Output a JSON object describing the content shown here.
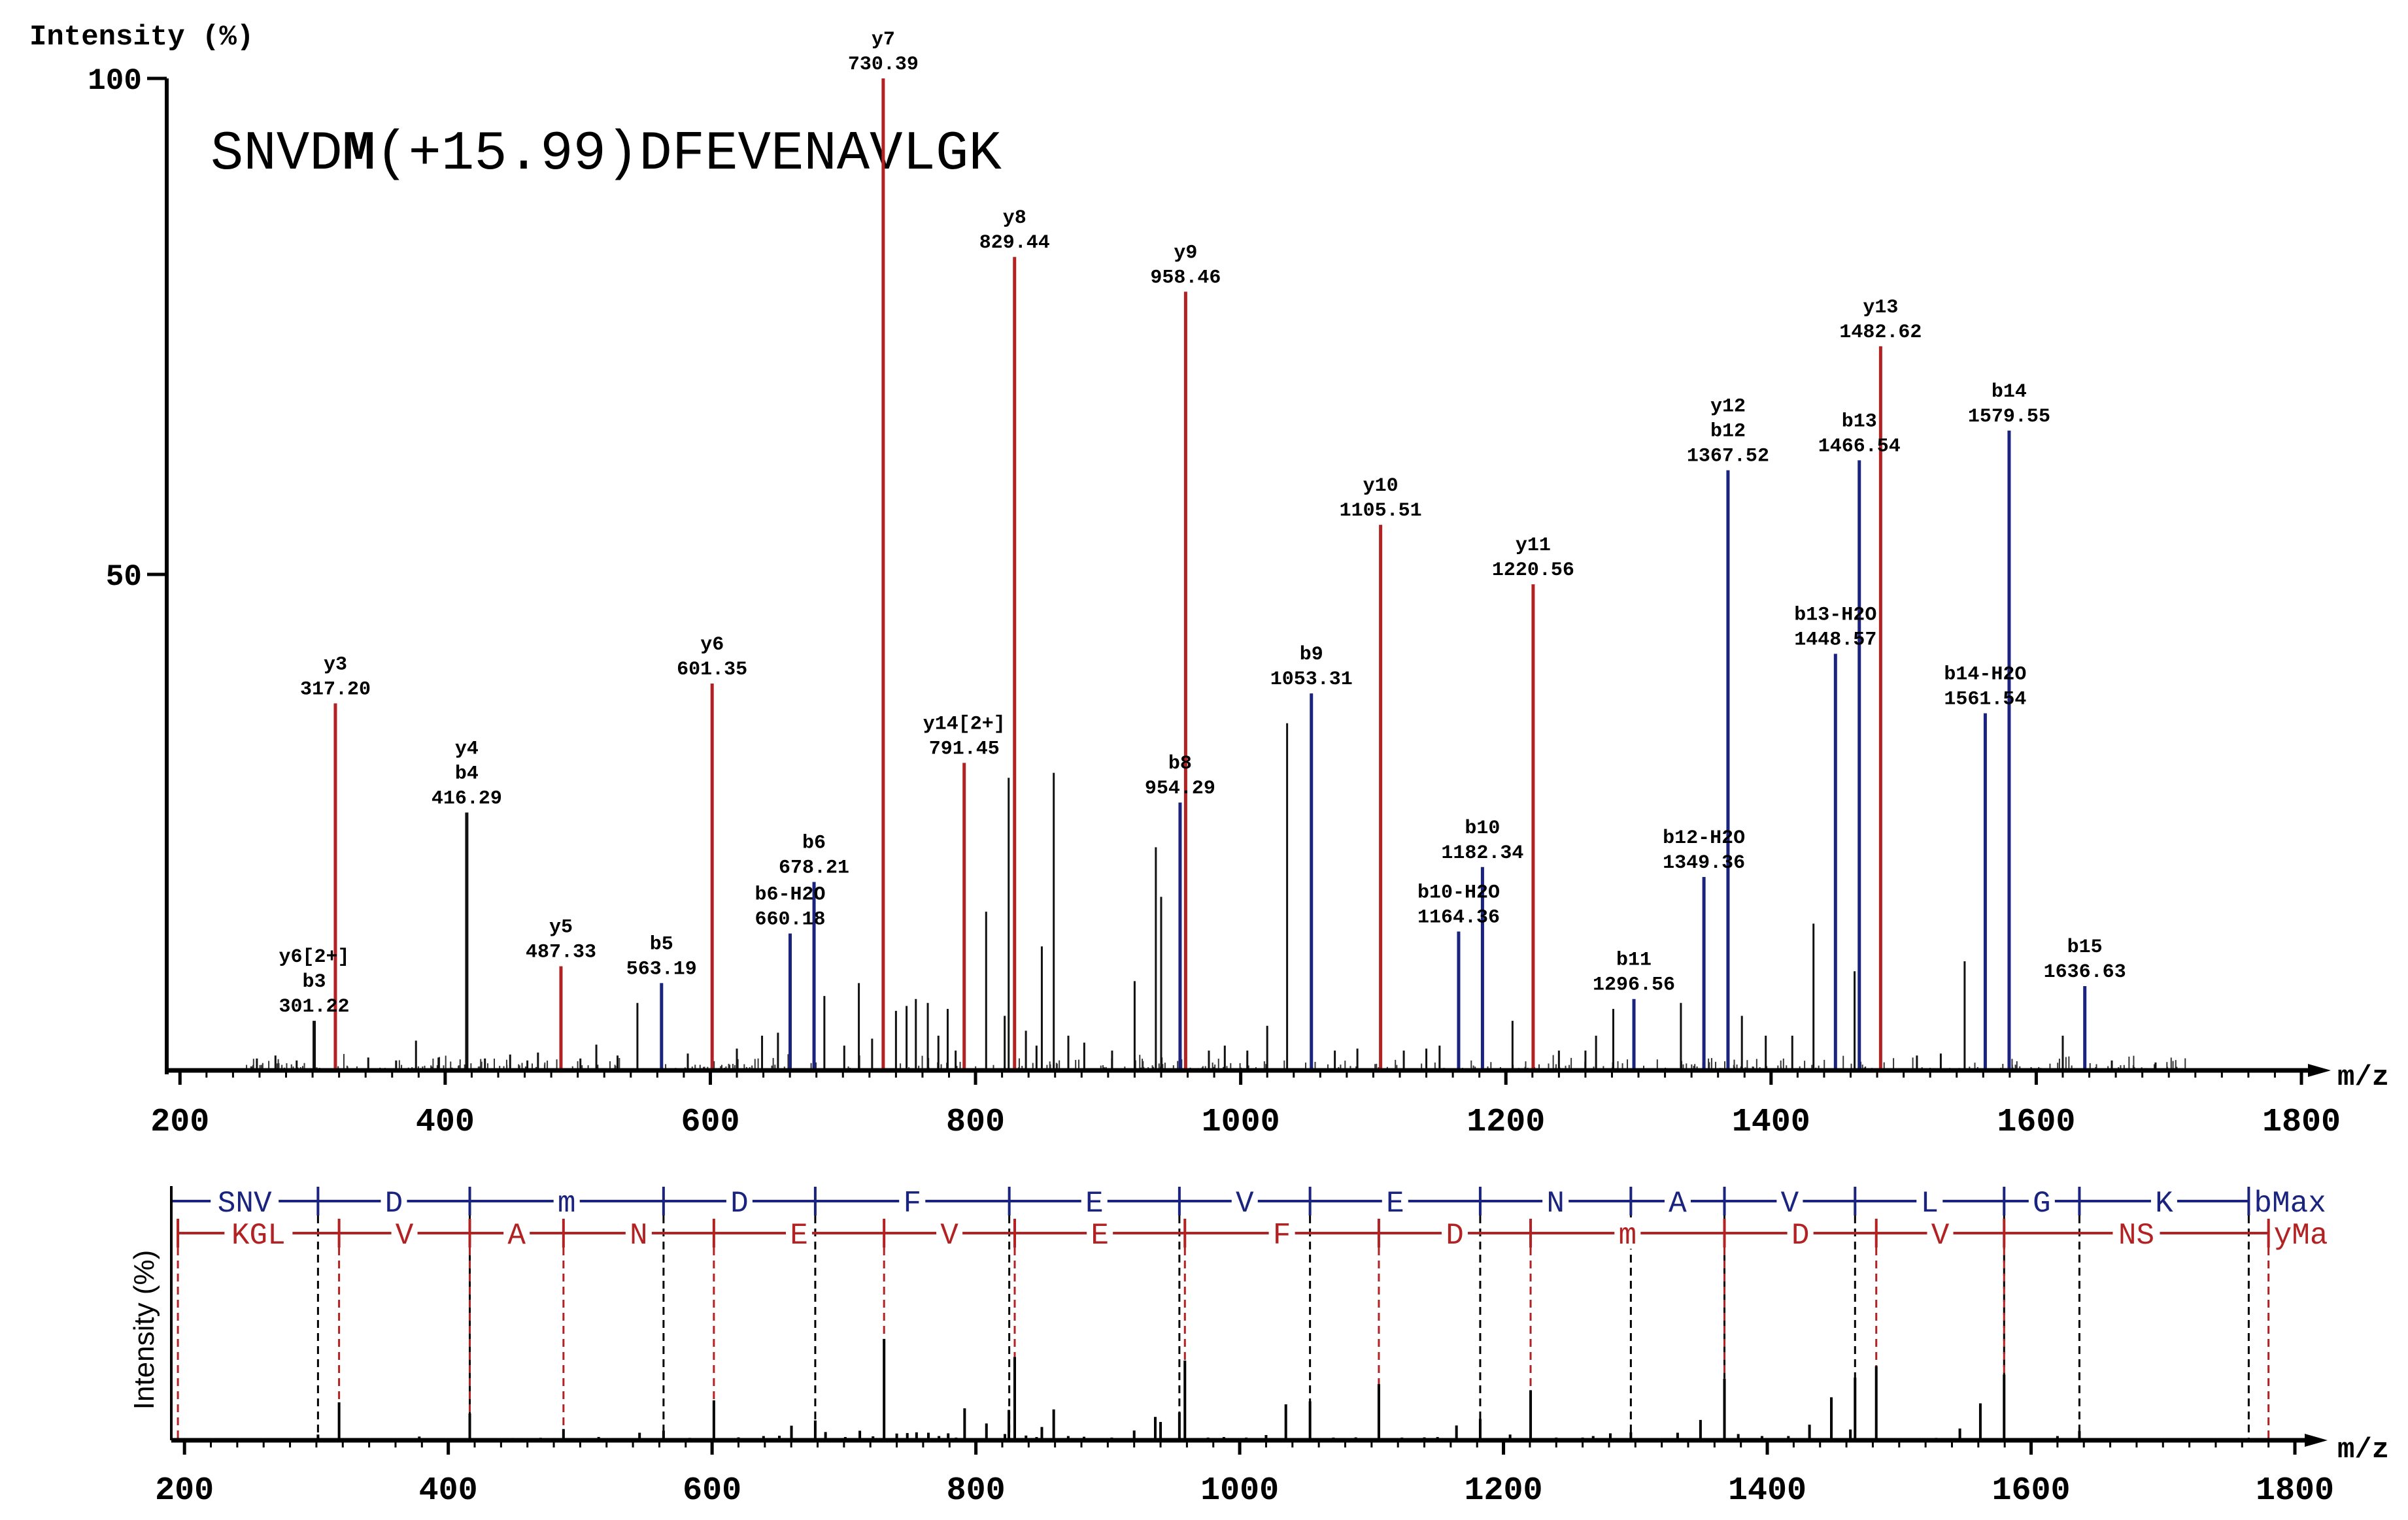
{
  "chart_data": {
    "type": "bar",
    "title": "",
    "peptide": {
      "prefix": "SNVD",
      "modified_residue": "M",
      "modification": "(+15.99)",
      "suffix": "DFEVENAVLGK"
    },
    "ylabel": "Intensity (%)",
    "xlabel": "m/z",
    "xlim": [
      190,
      1800
    ],
    "ylim": [
      0,
      100
    ],
    "x_ticks": [
      200,
      400,
      600,
      800,
      1000,
      1200,
      1400,
      1600,
      1800
    ],
    "y_ticks": [
      50,
      100
    ],
    "colors": {
      "y_ion": "#b22222",
      "b_ion": "#1a237e",
      "other": "#111111",
      "axis": "#000000"
    },
    "annotated_peaks": [
      {
        "mz": 301.22,
        "intensity": 5,
        "type": "other",
        "labels": [
          "y6[2+]",
          "b3",
          "301.22"
        ]
      },
      {
        "mz": 317.2,
        "intensity": 37,
        "type": "y",
        "labels": [
          "y3",
          "317.20"
        ]
      },
      {
        "mz": 416.29,
        "intensity": 26,
        "type": "other",
        "labels": [
          "y4",
          "b4",
          "416.29"
        ]
      },
      {
        "mz": 487.33,
        "intensity": 10.5,
        "type": "y",
        "labels": [
          "y5",
          "487.33"
        ]
      },
      {
        "mz": 563.19,
        "intensity": 8.8,
        "type": "b",
        "labels": [
          "b5",
          "563.19"
        ]
      },
      {
        "mz": 601.35,
        "intensity": 39,
        "type": "y",
        "labels": [
          "y6",
          "601.35"
        ]
      },
      {
        "mz": 660.18,
        "intensity": 13.8,
        "type": "b",
        "labels": [
          "b6-H2O",
          "660.18"
        ]
      },
      {
        "mz": 678.21,
        "intensity": 19,
        "type": "b",
        "labels": [
          "b6",
          "678.21"
        ]
      },
      {
        "mz": 730.39,
        "intensity": 100,
        "type": "y",
        "labels": [
          "y7",
          "730.39"
        ]
      },
      {
        "mz": 791.45,
        "intensity": 31,
        "type": "y",
        "labels": [
          "y14[2+]",
          "791.45"
        ]
      },
      {
        "mz": 829.44,
        "intensity": 82,
        "type": "y",
        "labels": [
          "y8",
          "829.44"
        ]
      },
      {
        "mz": 954.29,
        "intensity": 27,
        "type": "b",
        "labels": [
          "b8",
          "954.29"
        ]
      },
      {
        "mz": 958.46,
        "intensity": 78.5,
        "type": "y",
        "labels": [
          "y9",
          "958.46"
        ]
      },
      {
        "mz": 1053.31,
        "intensity": 38,
        "type": "b",
        "labels": [
          "b9",
          "1053.31"
        ]
      },
      {
        "mz": 1105.51,
        "intensity": 55,
        "type": "y",
        "labels": [
          "y10",
          "1105.51"
        ]
      },
      {
        "mz": 1164.36,
        "intensity": 14,
        "type": "b",
        "labels": [
          "b10-H2O",
          "1164.36"
        ]
      },
      {
        "mz": 1182.34,
        "intensity": 20.5,
        "type": "b",
        "labels": [
          "b10",
          "1182.34"
        ]
      },
      {
        "mz": 1220.56,
        "intensity": 49,
        "type": "y",
        "labels": [
          "y11",
          "1220.56"
        ]
      },
      {
        "mz": 1296.56,
        "intensity": 7.2,
        "type": "b",
        "labels": [
          "b11",
          "1296.56"
        ]
      },
      {
        "mz": 1349.36,
        "intensity": 19.5,
        "type": "b",
        "labels": [
          "b12-H2O",
          "1349.36"
        ]
      },
      {
        "mz": 1367.52,
        "intensity": 60.5,
        "type": "b",
        "labels": [
          "y12",
          "b12",
          "1367.52"
        ]
      },
      {
        "mz": 1448.57,
        "intensity": 42,
        "type": "b",
        "labels": [
          "b13-H2O",
          "1448.57"
        ]
      },
      {
        "mz": 1466.54,
        "intensity": 61.5,
        "type": "b",
        "labels": [
          "b13",
          "1466.54"
        ]
      },
      {
        "mz": 1482.62,
        "intensity": 73,
        "type": "y",
        "labels": [
          "y13",
          "1482.62"
        ]
      },
      {
        "mz": 1561.54,
        "intensity": 36,
        "type": "b",
        "labels": [
          "b14-H2O",
          "1561.54"
        ]
      },
      {
        "mz": 1579.55,
        "intensity": 64.5,
        "type": "b",
        "labels": [
          "b14",
          "1579.55"
        ]
      },
      {
        "mz": 1636.63,
        "intensity": 8.5,
        "type": "b",
        "labels": [
          "b15",
          "1636.63"
        ]
      }
    ],
    "unannotated_peaks": [
      {
        "mz": 258,
        "intensity": 1.2
      },
      {
        "mz": 272,
        "intensity": 1.5
      },
      {
        "mz": 288,
        "intensity": 1.0
      },
      {
        "mz": 342,
        "intensity": 1.3
      },
      {
        "mz": 363,
        "intensity": 1.0
      },
      {
        "mz": 378,
        "intensity": 3.0
      },
      {
        "mz": 395,
        "intensity": 1.3
      },
      {
        "mz": 430,
        "intensity": 1.2
      },
      {
        "mz": 449,
        "intensity": 1.6
      },
      {
        "mz": 462,
        "intensity": 1.0
      },
      {
        "mz": 470,
        "intensity": 1.8
      },
      {
        "mz": 502,
        "intensity": 1.2
      },
      {
        "mz": 514,
        "intensity": 2.6
      },
      {
        "mz": 530,
        "intensity": 1.5
      },
      {
        "mz": 545,
        "intensity": 6.8
      },
      {
        "mz": 583,
        "intensity": 1.7
      },
      {
        "mz": 620,
        "intensity": 2.2
      },
      {
        "mz": 639,
        "intensity": 3.5
      },
      {
        "mz": 651,
        "intensity": 3.8
      },
      {
        "mz": 686,
        "intensity": 7.5
      },
      {
        "mz": 701,
        "intensity": 2.5
      },
      {
        "mz": 712,
        "intensity": 8.8
      },
      {
        "mz": 722,
        "intensity": 3.2
      },
      {
        "mz": 740,
        "intensity": 6.0
      },
      {
        "mz": 748,
        "intensity": 6.5
      },
      {
        "mz": 755,
        "intensity": 7.2
      },
      {
        "mz": 764,
        "intensity": 6.8
      },
      {
        "mz": 772,
        "intensity": 3.5
      },
      {
        "mz": 779,
        "intensity": 6.2
      },
      {
        "mz": 785,
        "intensity": 2.0
      },
      {
        "mz": 808,
        "intensity": 16.0
      },
      {
        "mz": 822,
        "intensity": 5.5
      },
      {
        "mz": 825,
        "intensity": 29.5
      },
      {
        "mz": 838,
        "intensity": 4.0
      },
      {
        "mz": 846,
        "intensity": 2.5
      },
      {
        "mz": 850,
        "intensity": 12.5
      },
      {
        "mz": 859,
        "intensity": 30.0
      },
      {
        "mz": 870,
        "intensity": 3.5
      },
      {
        "mz": 882,
        "intensity": 2.8
      },
      {
        "mz": 903,
        "intensity": 2.0
      },
      {
        "mz": 920,
        "intensity": 9.0
      },
      {
        "mz": 936,
        "intensity": 22.5
      },
      {
        "mz": 940,
        "intensity": 17.5
      },
      {
        "mz": 976,
        "intensity": 2.0
      },
      {
        "mz": 988,
        "intensity": 2.5
      },
      {
        "mz": 1005,
        "intensity": 2.0
      },
      {
        "mz": 1020,
        "intensity": 4.5
      },
      {
        "mz": 1035,
        "intensity": 35.0
      },
      {
        "mz": 1071,
        "intensity": 2.0
      },
      {
        "mz": 1088,
        "intensity": 2.2
      },
      {
        "mz": 1123,
        "intensity": 2.0
      },
      {
        "mz": 1140,
        "intensity": 2.2
      },
      {
        "mz": 1150,
        "intensity": 2.5
      },
      {
        "mz": 1205,
        "intensity": 5.0
      },
      {
        "mz": 1240,
        "intensity": 2.0
      },
      {
        "mz": 1260,
        "intensity": 2.0
      },
      {
        "mz": 1268,
        "intensity": 3.5
      },
      {
        "mz": 1281,
        "intensity": 6.2
      },
      {
        "mz": 1332,
        "intensity": 6.8
      },
      {
        "mz": 1378,
        "intensity": 5.5
      },
      {
        "mz": 1396,
        "intensity": 3.5
      },
      {
        "mz": 1416,
        "intensity": 3.5
      },
      {
        "mz": 1432,
        "intensity": 14.8
      },
      {
        "mz": 1463,
        "intensity": 10.0
      },
      {
        "mz": 1510,
        "intensity": 1.5
      },
      {
        "mz": 1528,
        "intensity": 1.7
      },
      {
        "mz": 1546,
        "intensity": 11.0
      },
      {
        "mz": 1620,
        "intensity": 3.5
      },
      {
        "mz": 1657,
        "intensity": 1.0
      },
      {
        "mz": 1690,
        "intensity": 0.8
      }
    ],
    "coverage": {
      "b_row": {
        "label": "bMax",
        "tokens": [
          "SNV",
          "D",
          "m",
          "D",
          "F",
          "E",
          "V",
          "E",
          "N",
          "A",
          "V",
          "L",
          "G",
          "K"
        ],
        "boundaries_mz": [
          190,
          301.22,
          416.29,
          563.19,
          678.21,
          825.3,
          954.29,
          1053.31,
          1182.34,
          1296.56,
          1367.52,
          1466.54,
          1579.55,
          1636.63,
          1765
        ]
      },
      "y_row": {
        "label": "yMa",
        "tokens": [
          "KGL",
          "V",
          "A",
          "N",
          "E",
          "V",
          "E",
          "F",
          "D",
          "m",
          "D",
          "V",
          "NS"
        ],
        "boundaries_mz": [
          195,
          317.2,
          416.29,
          487.33,
          601.35,
          730.39,
          829.44,
          958.46,
          1105.51,
          1220.56,
          1367.52,
          1482.62,
          1579.55,
          1780
        ]
      }
    },
    "inset": {
      "ylabel": "Intensity (%)",
      "xlabel": "m/z",
      "x_ticks": [
        200,
        400,
        600,
        800,
        1000,
        1200,
        1400,
        1600,
        1800
      ]
    }
  }
}
